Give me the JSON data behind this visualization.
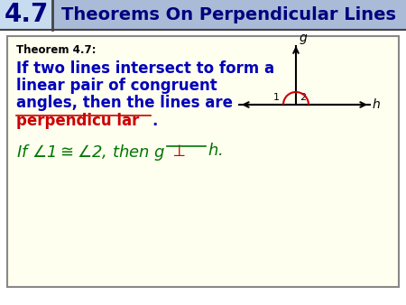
{
  "title_number": "4.7",
  "title_text": "Theorems On Perpendicular Lines",
  "header_bg": "#c8d8f0",
  "number_bg": "#c8d8f0",
  "theorem_label": "Theorem 4.7:",
  "theorem_body_line1": "If two lines intersect to form a",
  "theorem_body_line2": "linear pair of congruent",
  "theorem_body_line3": "angles, then the lines are",
  "answer_word": "perpendicu lar",
  "period": ".",
  "body_bg": "#fffff0",
  "border_color": "#888888",
  "blue_color": "#0000bb",
  "red_color": "#cc0000",
  "green_color": "#007700",
  "dark_navy": "#000080",
  "title_bg": "#aabbd8",
  "number_bg2": "#c8dcf0",
  "white": "#ffffff"
}
